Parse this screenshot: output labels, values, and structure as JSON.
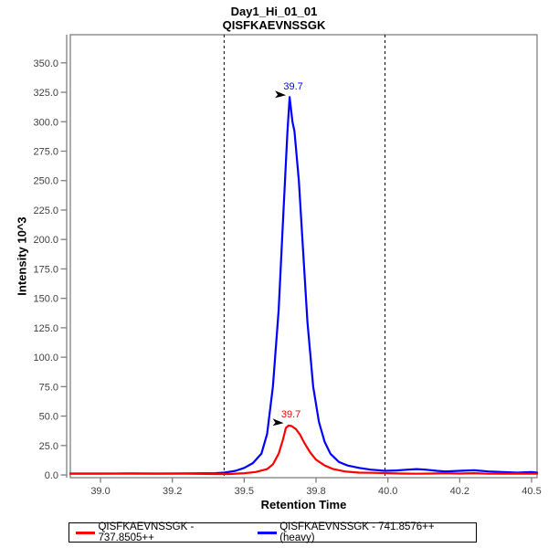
{
  "chart_data": {
    "type": "line",
    "title": "Day1_Hi_01_01",
    "subtitle": "QISFKAEVNSSGK",
    "xlabel": "Retention Time",
    "ylabel": "Intensity 10^3",
    "xlim": [
      38.895,
      40.519
    ],
    "ylim": [
      -2.3,
      373.9
    ],
    "grid": false,
    "frame_color": "#808080",
    "tick_text_color": "#404040",
    "boundary_line_color": "#000000",
    "annotation_arrow_color": "#000000",
    "x_ticks": {
      "values": [
        39.0,
        39.25,
        39.5,
        39.75,
        40.0,
        40.25,
        40.5
      ],
      "labels": [
        "39.0",
        "39.2",
        "39.5",
        "39.8",
        "40.0",
        "40.2",
        "40.5"
      ]
    },
    "y_ticks": {
      "values": [
        0,
        25,
        50,
        75,
        100,
        125,
        150,
        175,
        200,
        225,
        250,
        275,
        300,
        325,
        350
      ],
      "labels": [
        "0.0",
        "25.0",
        "50.0",
        "75.0",
        "100.0",
        "125.0",
        "150.0",
        "175.0",
        "200.0",
        "225.0",
        "250.0",
        "275.0",
        "300.0",
        "325.0",
        "350.0"
      ]
    },
    "peak_boundaries": [
      39.43,
      39.99
    ],
    "series": [
      {
        "id": "light",
        "name": "QISFKAEVNSSGK - 737.8505++",
        "color": "#ff0000",
        "peak_annotation": {
          "label": "39.7",
          "x": 39.65,
          "y": 42.5
        },
        "x": [
          38.895,
          39.0,
          39.1,
          39.2,
          39.3,
          39.4,
          39.45,
          39.5,
          39.54,
          39.58,
          39.6,
          39.62,
          39.635,
          39.645,
          39.655,
          39.665,
          39.68,
          39.695,
          39.71,
          39.73,
          39.75,
          39.78,
          39.81,
          39.85,
          39.9,
          39.95,
          40.0,
          40.05,
          40.1,
          40.15,
          40.2,
          40.25,
          40.3,
          40.35,
          40.4,
          40.45,
          40.5,
          40.519
        ],
        "y": [
          1,
          1,
          1,
          1,
          1,
          0.8,
          0.8,
          1.5,
          2.5,
          5,
          9,
          18,
          30,
          40,
          42,
          41.5,
          39,
          34,
          27,
          19,
          13,
          8,
          5,
          3,
          2,
          1.8,
          1.5,
          1.2,
          1,
          1.2,
          1.5,
          1.2,
          1.5,
          1,
          1,
          1.2,
          1,
          1
        ]
      },
      {
        "id": "heavy",
        "name": "QISFKAEVNSSGK - 741.8576++ (heavy)",
        "color": "#0000ff",
        "peak_annotation": {
          "label": "39.7",
          "x": 39.658,
          "y": 321
        },
        "x": [
          38.895,
          39.0,
          39.1,
          39.2,
          39.3,
          39.4,
          39.43,
          39.47,
          39.5,
          39.53,
          39.56,
          39.58,
          39.6,
          39.62,
          39.635,
          39.65,
          39.658,
          39.668,
          39.675,
          39.69,
          39.705,
          39.72,
          39.74,
          39.76,
          39.78,
          39.8,
          39.83,
          39.86,
          39.9,
          39.94,
          39.99,
          40.03,
          40.07,
          40.1,
          40.13,
          40.17,
          40.2,
          40.25,
          40.3,
          40.35,
          40.4,
          40.45,
          40.5,
          40.519
        ],
        "y": [
          1.2,
          1.2,
          1.3,
          1.2,
          1.3,
          1.5,
          2,
          3.5,
          6,
          10,
          18,
          35,
          75,
          140,
          215,
          290,
          321,
          300,
          292,
          250,
          190,
          130,
          75,
          45,
          28,
          18,
          11,
          8,
          6,
          4.5,
          3.5,
          3.8,
          4.5,
          5,
          4.5,
          3.5,
          3,
          3.5,
          4,
          3,
          2.5,
          2,
          2.5,
          2
        ]
      }
    ]
  }
}
